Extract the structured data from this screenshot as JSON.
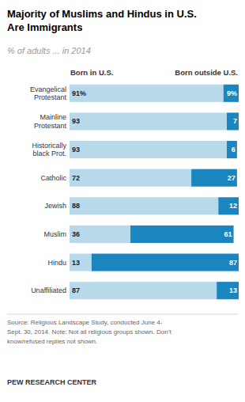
{
  "chart_data": {
    "type": "bar",
    "orientation": "horizontal",
    "stacked": true,
    "data_labels": true,
    "tick_labels": "y",
    "title": "Majority of Muslims and Hindus in U.S.\nAre Immigrants",
    "subtitle": "% of adults ... in 2014",
    "categories": [
      "Evangelical\nProtestant",
      "Mainline\nProtestant",
      "Historically\nblack Prot.",
      "Catholic",
      "Jewish",
      "Muslim",
      "Hindu",
      "Unaffiliated"
    ],
    "series": [
      {
        "name": "Born in U.S.",
        "color": "#b8d9ea",
        "values": [
          91,
          93,
          93,
          72,
          88,
          36,
          13,
          87
        ],
        "value_labels": [
          "91%",
          "93",
          "93",
          "72",
          "88",
          "36",
          "13",
          "87"
        ]
      },
      {
        "name": "Born outside U.S.",
        "color": "#1a85bf",
        "values": [
          9,
          7,
          6,
          27,
          12,
          61,
          87,
          13
        ],
        "value_labels": [
          "9%",
          "7",
          "6",
          "27",
          "12",
          "61",
          "87",
          "13"
        ]
      }
    ],
    "xlim": [
      0,
      100
    ],
    "annotations": [
      "Source: Religious Landscape Study, conducted June 4-\nSept. 30, 2014. Note: Not all religious groups shown. Don’t\nknow/refused replies not shown.",
      "PEW RESEARCH CENTER"
    ]
  }
}
